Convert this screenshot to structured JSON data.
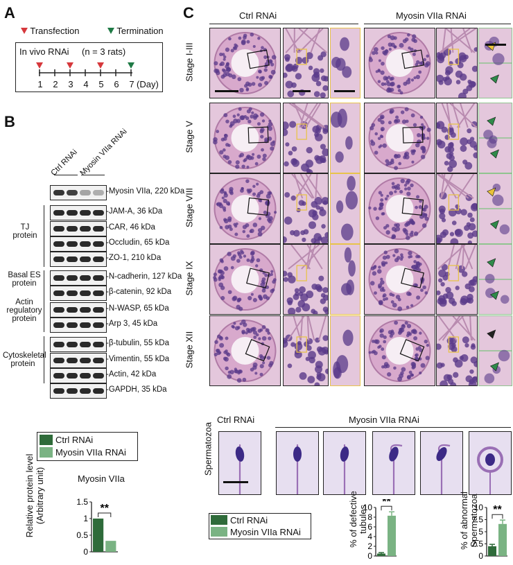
{
  "panel_a": {
    "letter": "A",
    "legend_transfection": "Transfection",
    "legend_termination": "Termination",
    "box_title": "In vivo RNAi",
    "box_n": "(n = 3 rats)",
    "days": [
      "1",
      "2",
      "3",
      "4",
      "5",
      "6",
      "7"
    ],
    "day_unit": "(Day)",
    "transfection_days": [
      1,
      3,
      5
    ],
    "termination_day": 7,
    "colors": {
      "transfection": "#d6383c",
      "termination": "#1f7a45"
    }
  },
  "panel_b": {
    "letter": "B",
    "lane_label_ctrl": "Ctrl RNAi",
    "lane_label_myo": "Myosin VIIa RNAi",
    "blots": [
      "-Myosin VIIa, 220 kDa",
      "-JAM-A, 36 kDa",
      "-CAR, 46 kDa",
      "-Occludin, 65 kDa",
      "-ZO-1, 210 kDa",
      "-N-cadherin, 127 kDa",
      "-β-catenin, 92 kDa",
      "-N-WASP, 65 kDa",
      "-Arp 3, 45 kDa",
      "-β-tubulin, 55 kDa",
      "-Vimentin, 55 kDa",
      "-Actin, 42 kDa",
      "-GAPDH, 35 kDa"
    ],
    "groups": [
      "TJ\nprotein",
      "Basal ES\nprotein",
      "Actin\nregulatory\nprotein",
      "Cytoskeletal\nprotein"
    ],
    "legend": [
      "Ctrl RNAi",
      "Myosin VIIa RNAi"
    ],
    "chart_title": "Myosin VIIa",
    "ylabel": "Relative protein level\n(Arbitrary unit)",
    "significance": "**",
    "yticks": [
      "0",
      "0.5",
      "1",
      "1.5"
    ]
  },
  "panel_c": {
    "letter": "C",
    "col_ctrl": "Ctrl RNAi",
    "col_myo": "Myosin VIIa RNAi",
    "stages": [
      "Stage I-III",
      "Stage V",
      "Stage VIII",
      "Stage IX",
      "Stage XII"
    ],
    "sperm_row_label": "Spermatozoa",
    "sperm_ctrl": "Ctrl RNAi",
    "sperm_myo": "Myosin VIIa  RNAi",
    "legend": [
      "Ctrl RNAi",
      "Myosin VIIa RNAi"
    ],
    "chart1_ylabel": "% of defective\ntubules",
    "chart1_yticks": [
      "0",
      "2",
      "4",
      "6",
      "8",
      "10"
    ],
    "chart2_ylabel": "% of abnormal\nSpermatozoa",
    "chart2_yticks": [
      "0",
      "2.5",
      "5",
      "7.5",
      "10"
    ],
    "significance": "**"
  },
  "colors": {
    "ctrl_bar": "#2f6b3a",
    "myo_bar": "#7ab383",
    "he_bg": "#e4c7dc",
    "he_nucleus": "#5a3a8a",
    "yellow_box": "#e8c34a",
    "green_box": "#8fc48f"
  },
  "chart_data": [
    {
      "type": "bar",
      "title": "Myosin VIIa",
      "categories": [
        "Ctrl RNAi",
        "Myosin VIIa RNAi"
      ],
      "values": [
        1.0,
        0.33
      ],
      "ylabel": "Relative protein level (Arbitrary unit)",
      "ylim": [
        0,
        1.5
      ]
    },
    {
      "type": "bar",
      "categories": [
        "Ctrl RNAi",
        "Myosin VIIa RNAi"
      ],
      "values": [
        0.5,
        8.3
      ],
      "errors": [
        0.2,
        0.8
      ],
      "ylabel": "% of defective tubules",
      "ylim": [
        0,
        10
      ]
    },
    {
      "type": "bar",
      "categories": [
        "Ctrl RNAi",
        "Myosin VIIa RNAi"
      ],
      "values": [
        2.0,
        6.6
      ],
      "errors": [
        0.4,
        0.8
      ],
      "ylabel": "% of abnormal Spermatozoa",
      "ylim": [
        0,
        10
      ]
    }
  ]
}
